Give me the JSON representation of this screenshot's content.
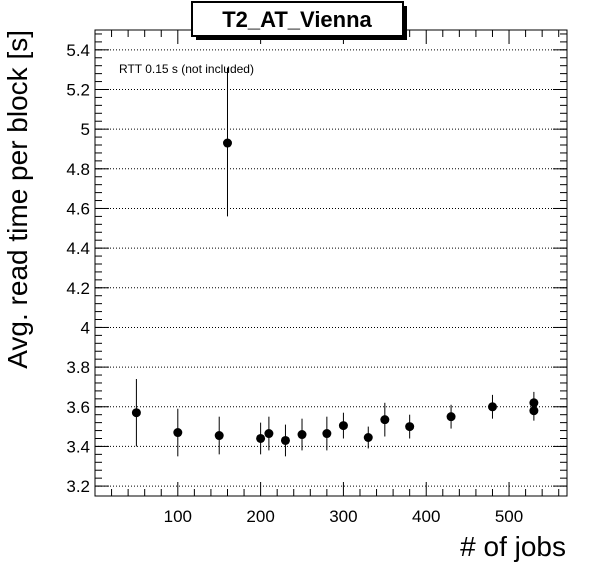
{
  "chart_data": {
    "type": "scatter",
    "title": "T2_AT_Vienna",
    "xlabel": "# of jobs",
    "ylabel": "Avg. read time per block [s]",
    "annotation": "RTT 0.15 s (not included)",
    "xlim": [
      0,
      570
    ],
    "ylim": [
      3.15,
      5.5
    ],
    "x_ticks": [
      100,
      200,
      300,
      400,
      500
    ],
    "x_tick_labels": [
      "100",
      "200",
      "300",
      "400",
      "500"
    ],
    "y_ticks": [
      3.2,
      3.4,
      3.6,
      3.8,
      4.0,
      4.2,
      4.4,
      4.6,
      4.8,
      5.0,
      5.2,
      5.4
    ],
    "y_tick_labels": [
      "3.2",
      "3.4",
      "3.6",
      "3.8",
      "4",
      "4.2",
      "4.4",
      "4.6",
      "4.8",
      "5",
      "5.2",
      "5.4"
    ],
    "grid": "horizontal",
    "series": [
      {
        "points": [
          {
            "x": 50,
            "y": 3.57,
            "ylo": 3.4,
            "yhi": 3.74
          },
          {
            "x": 100,
            "y": 3.47,
            "ylo": 3.35,
            "yhi": 3.59
          },
          {
            "x": 150,
            "y": 3.455,
            "ylo": 3.36,
            "yhi": 3.55
          },
          {
            "x": 160,
            "y": 4.93,
            "ylo": 4.56,
            "yhi": 5.31
          },
          {
            "x": 200,
            "y": 3.44,
            "ylo": 3.36,
            "yhi": 3.52
          },
          {
            "x": 210,
            "y": 3.465,
            "ylo": 3.38,
            "yhi": 3.55
          },
          {
            "x": 230,
            "y": 3.43,
            "ylo": 3.35,
            "yhi": 3.51
          },
          {
            "x": 250,
            "y": 3.46,
            "ylo": 3.38,
            "yhi": 3.54
          },
          {
            "x": 280,
            "y": 3.465,
            "ylo": 3.38,
            "yhi": 3.55
          },
          {
            "x": 300,
            "y": 3.505,
            "ylo": 3.44,
            "yhi": 3.57
          },
          {
            "x": 330,
            "y": 3.445,
            "ylo": 3.39,
            "yhi": 3.5
          },
          {
            "x": 350,
            "y": 3.535,
            "ylo": 3.45,
            "yhi": 3.62
          },
          {
            "x": 380,
            "y": 3.5,
            "ylo": 3.44,
            "yhi": 3.56
          },
          {
            "x": 430,
            "y": 3.55,
            "ylo": 3.49,
            "yhi": 3.61
          },
          {
            "x": 480,
            "y": 3.6,
            "ylo": 3.54,
            "yhi": 3.66
          },
          {
            "x": 530,
            "y": 3.62,
            "ylo": 3.565,
            "yhi": 3.675
          },
          {
            "x": 530,
            "y": 3.58,
            "ylo": 3.53,
            "yhi": 3.63
          }
        ]
      }
    ]
  }
}
